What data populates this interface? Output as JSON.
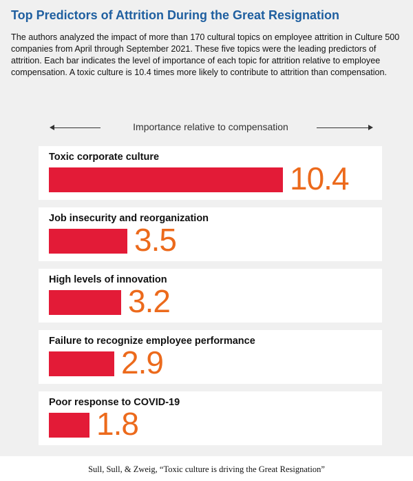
{
  "header": {
    "title": "Top Predictors of Attrition During the Great Resignation",
    "subtitle": "The authors analyzed the impact of more than 170 cultural topics on employee attrition in Culture 500 companies from April through September 2021. These five topics were the leading predictors of attrition. Each bar indicates the level of importance of each topic for attrition relative to employee compensation. A toxic culture is 10.4 times more likely to contribute to attrition than compensation."
  },
  "chart_data": {
    "type": "bar",
    "orientation": "horizontal",
    "title": "Top Predictors of Attrition During the Great Resignation",
    "xlabel": "Importance relative to compensation",
    "categories": [
      "Toxic corporate culture",
      "Job insecurity and reorganization",
      "High levels of innovation",
      "Failure to recognize employee performance",
      "Poor response to COVID-19"
    ],
    "values": [
      10.4,
      3.5,
      3.2,
      2.9,
      1.8
    ],
    "value_labels": [
      "10.4",
      "3.5",
      "3.2",
      "2.9",
      "1.8"
    ],
    "xlim": [
      0,
      10.4
    ],
    "grid": false,
    "legend": "none",
    "colors": {
      "bar": "#e31b37",
      "value": "#ec6a1c",
      "title": "#1f5fa0"
    }
  },
  "footer": {
    "caption": "Sull, Sull, & Zweig, “Toxic culture is driving the Great Resignation”"
  }
}
